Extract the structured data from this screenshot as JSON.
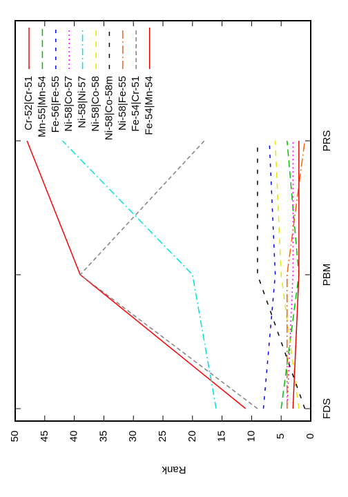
{
  "chart_data": {
    "type": "line",
    "ylabel": "Rank",
    "categories": [
      "FDS",
      "PBM",
      "PRS"
    ],
    "ylim": [
      0,
      50
    ],
    "yticks": [
      0,
      5,
      10,
      15,
      20,
      25,
      30,
      35,
      40,
      45,
      50
    ],
    "legend": "top-right",
    "series": [
      {
        "name": "Cr-52|Cr-51",
        "color": "#ff0000",
        "dash": "none",
        "values": [
          11,
          39,
          48
        ]
      },
      {
        "name": "Mn-55|Mn-54",
        "color": "#00c000",
        "dash": "10,6",
        "values": [
          5,
          2,
          4
        ]
      },
      {
        "name": "Fe-56|Fe-55",
        "color": "#0000ff",
        "dash": "5,8",
        "values": [
          8,
          6,
          7
        ]
      },
      {
        "name": "Ni-58|Co-57",
        "color": "#ff00ff",
        "dash": "2,4",
        "values": [
          4,
          3,
          3
        ]
      },
      {
        "name": "Ni-58|Ni-57",
        "color": "#00e0e0",
        "dash": "10,4,2,4",
        "values": [
          16,
          20,
          42
        ]
      },
      {
        "name": "Ni-58|Co-58",
        "color": "#f0e000",
        "dash": "8,8",
        "values": [
          2,
          5,
          6
        ]
      },
      {
        "name": "Ni-58|Co-58m",
        "color": "#000000",
        "dash": "6,10",
        "values": [
          1,
          9,
          9
        ]
      },
      {
        "name": "Ni-58|Fe-55",
        "color": "#ff6000",
        "dash": "12,4,2,4",
        "values": [
          4,
          4,
          1
        ]
      },
      {
        "name": "Fe-54|Cr-51",
        "color": "#808080",
        "dash": "6,4",
        "values": [
          9,
          39,
          18
        ]
      },
      {
        "name": "Fe-54|Mn-54",
        "color": "#e00000",
        "dash": "none",
        "values": [
          3,
          2,
          2
        ]
      }
    ]
  }
}
